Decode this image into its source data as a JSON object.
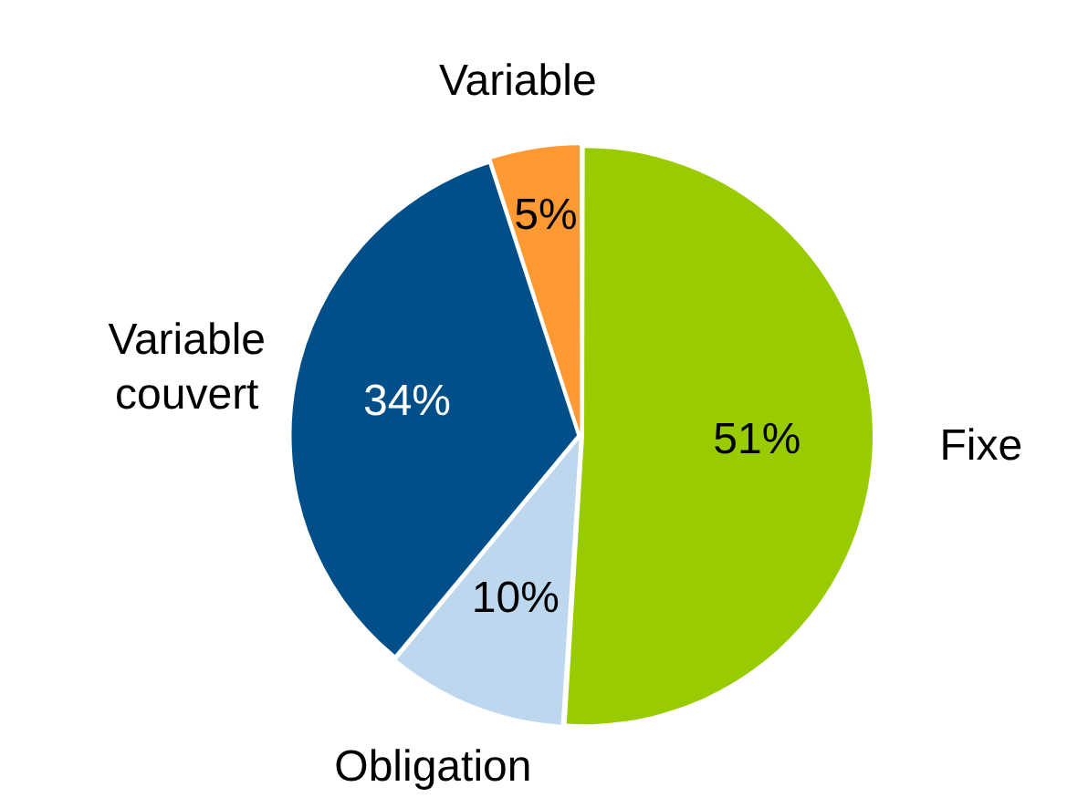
{
  "chart_data": {
    "type": "pie",
    "categories": [
      "Fixe",
      "Obligation",
      "Variable couvert",
      "Variable"
    ],
    "values": [
      51,
      10,
      34,
      5
    ],
    "value_labels": [
      "51%",
      "10%",
      "34%",
      "5%"
    ],
    "colors": [
      "#99cc00",
      "#bdd7ee",
      "#004f88",
      "#ff9933"
    ],
    "legend": false
  }
}
